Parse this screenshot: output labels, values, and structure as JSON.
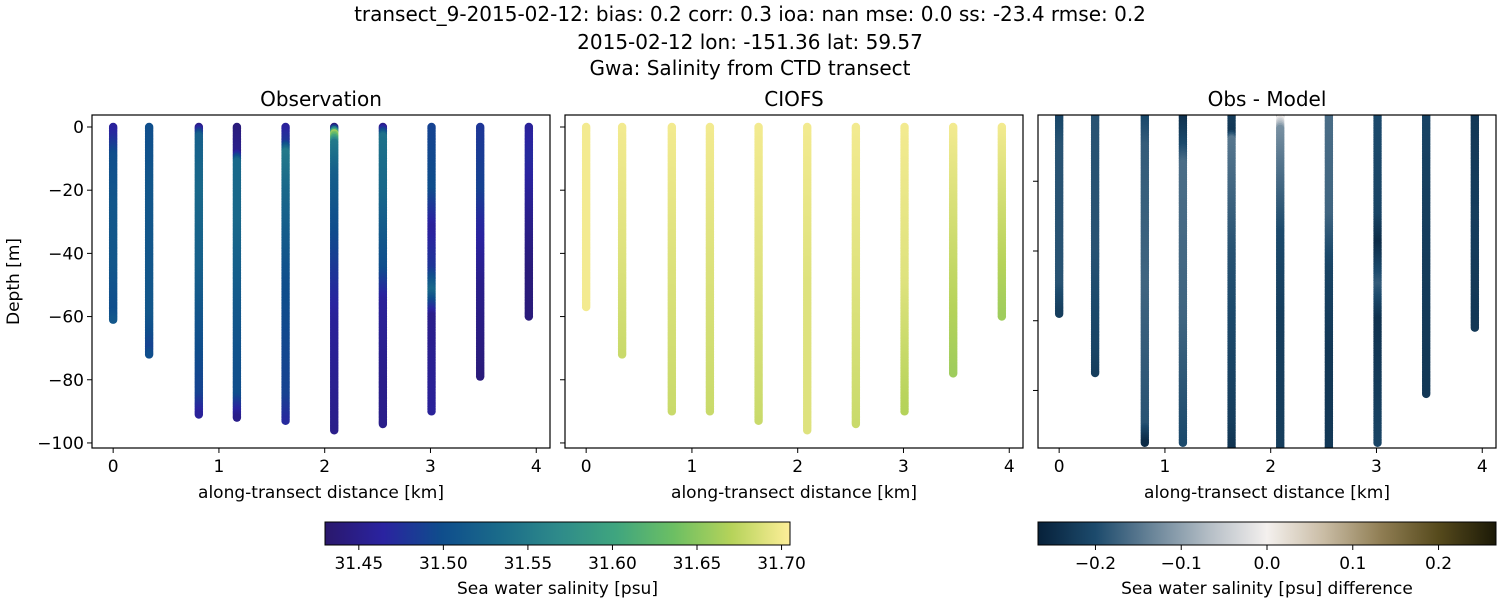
{
  "figure": {
    "suptitle_lines": [
      "transect_9-2015-02-12: bias: 0.2  corr: 0.3  ioa: nan  mse: 0.0  ss: -23.4  rmse: 0.2",
      "2015-02-12 lon: -151.36 lat: 59.57",
      "Gwa: Salinity from CTD transect"
    ]
  },
  "chart_data": [
    {
      "type": "scatter",
      "title": "Observation",
      "xlabel": "along-transect distance [km]",
      "ylabel": "Depth [m]",
      "xlim": [
        -0.2,
        4.13
      ],
      "ylim": [
        -101.6,
        3.8
      ],
      "xticks": [
        0,
        1,
        2,
        3,
        4
      ],
      "yticks": [
        0,
        -20,
        -40,
        -60,
        -80,
        -100
      ],
      "ytick_labels": [
        "0",
        "−20",
        "−40",
        "−60",
        "−80",
        "−100"
      ],
      "colormap": "haline",
      "vmin": 31.43,
      "vmax": 31.705,
      "stations": [
        {
          "x": 0.0,
          "max_depth": 61,
          "profile": [
            [
              0,
              31.46
            ],
            [
              3,
              31.47
            ],
            [
              9,
              31.5
            ],
            [
              25,
              31.51
            ],
            [
              45,
              31.51
            ],
            [
              58,
              31.5
            ],
            [
              61,
              31.51
            ]
          ]
        },
        {
          "x": 0.34,
          "max_depth": 72,
          "profile": [
            [
              0,
              31.5
            ],
            [
              20,
              31.51
            ],
            [
              40,
              31.51
            ],
            [
              60,
              31.51
            ],
            [
              70,
              31.49
            ],
            [
              72,
              31.5
            ]
          ]
        },
        {
          "x": 0.81,
          "max_depth": 91,
          "profile": [
            [
              0,
              31.45
            ],
            [
              3,
              31.52
            ],
            [
              20,
              31.53
            ],
            [
              45,
              31.52
            ],
            [
              70,
              31.5
            ],
            [
              85,
              31.49
            ],
            [
              91,
              31.46
            ]
          ]
        },
        {
          "x": 1.17,
          "max_depth": 92,
          "profile": [
            [
              0,
              31.44
            ],
            [
              8,
              31.45
            ],
            [
              11,
              31.53
            ],
            [
              30,
              31.53
            ],
            [
              60,
              31.51
            ],
            [
              85,
              31.5
            ],
            [
              92,
              31.45
            ]
          ]
        },
        {
          "x": 1.63,
          "max_depth": 93,
          "profile": [
            [
              0,
              31.46
            ],
            [
              5,
              31.48
            ],
            [
              8,
              31.55
            ],
            [
              20,
              31.53
            ],
            [
              50,
              31.5
            ],
            [
              85,
              31.49
            ],
            [
              93,
              31.47
            ]
          ]
        },
        {
          "x": 2.09,
          "max_depth": 96,
          "profile": [
            [
              0,
              31.44
            ],
            [
              2,
              31.66
            ],
            [
              5,
              31.55
            ],
            [
              15,
              31.52
            ],
            [
              40,
              31.49
            ],
            [
              60,
              31.46
            ],
            [
              96,
              31.45
            ]
          ]
        },
        {
          "x": 2.55,
          "max_depth": 94,
          "profile": [
            [
              0,
              31.45
            ],
            [
              3,
              31.54
            ],
            [
              20,
              31.53
            ],
            [
              45,
              31.5
            ],
            [
              55,
              31.46
            ],
            [
              80,
              31.45
            ],
            [
              94,
              31.45
            ]
          ]
        },
        {
          "x": 3.01,
          "max_depth": 90,
          "profile": [
            [
              0,
              31.49
            ],
            [
              20,
              31.5
            ],
            [
              32,
              31.46
            ],
            [
              45,
              31.48
            ],
            [
              52,
              31.53
            ],
            [
              60,
              31.45
            ],
            [
              90,
              31.46
            ]
          ]
        },
        {
          "x": 3.47,
          "max_depth": 79,
          "profile": [
            [
              0,
              31.48
            ],
            [
              20,
              31.49
            ],
            [
              30,
              31.47
            ],
            [
              50,
              31.45
            ],
            [
              79,
              31.44
            ]
          ]
        },
        {
          "x": 3.93,
          "max_depth": 60,
          "profile": [
            [
              0,
              31.46
            ],
            [
              10,
              31.47
            ],
            [
              30,
              31.45
            ],
            [
              45,
              31.44
            ],
            [
              60,
              31.44
            ]
          ]
        }
      ]
    },
    {
      "type": "scatter",
      "title": "CIOFS",
      "xlabel": "along-transect distance [km]",
      "ylabel": "",
      "xlim": [
        -0.2,
        4.13
      ],
      "ylim": [
        -101.6,
        3.8
      ],
      "xticks": [
        0,
        1,
        2,
        3,
        4
      ],
      "yticks": [
        0,
        -20,
        -40,
        -60,
        -80,
        -100
      ],
      "ytick_labels": [],
      "colormap": "haline",
      "vmin": 31.43,
      "vmax": 31.705,
      "stations": [
        {
          "x": 0.0,
          "max_depth": 57,
          "profile": [
            [
              0,
              31.7
            ],
            [
              57,
              31.7
            ]
          ]
        },
        {
          "x": 0.34,
          "max_depth": 72,
          "profile": [
            [
              0,
              31.7
            ],
            [
              40,
              31.69
            ],
            [
              72,
              31.68
            ]
          ]
        },
        {
          "x": 0.81,
          "max_depth": 90,
          "profile": [
            [
              0,
              31.7
            ],
            [
              40,
              31.69
            ],
            [
              90,
              31.68
            ]
          ]
        },
        {
          "x": 1.17,
          "max_depth": 90,
          "profile": [
            [
              0,
              31.7
            ],
            [
              40,
              31.69
            ],
            [
              90,
              31.68
            ]
          ]
        },
        {
          "x": 1.63,
          "max_depth": 93,
          "profile": [
            [
              0,
              31.7
            ],
            [
              50,
              31.69
            ],
            [
              93,
              31.68
            ]
          ]
        },
        {
          "x": 2.09,
          "max_depth": 96,
          "profile": [
            [
              0,
              31.7
            ],
            [
              50,
              31.69
            ],
            [
              96,
              31.69
            ]
          ]
        },
        {
          "x": 2.55,
          "max_depth": 94,
          "profile": [
            [
              0,
              31.7
            ],
            [
              50,
              31.69
            ],
            [
              94,
              31.68
            ]
          ]
        },
        {
          "x": 3.01,
          "max_depth": 90,
          "profile": [
            [
              0,
              31.7
            ],
            [
              50,
              31.69
            ],
            [
              90,
              31.67
            ]
          ]
        },
        {
          "x": 3.47,
          "max_depth": 78,
          "profile": [
            [
              0,
              31.7
            ],
            [
              40,
              31.68
            ],
            [
              78,
              31.66
            ]
          ]
        },
        {
          "x": 3.93,
          "max_depth": 60,
          "profile": [
            [
              0,
              31.7
            ],
            [
              30,
              31.68
            ],
            [
              60,
              31.66
            ]
          ]
        }
      ]
    },
    {
      "type": "scatter",
      "title": "Obs - Model",
      "xlabel": "along-transect distance [km]",
      "ylabel": "",
      "xlim": [
        -0.2,
        4.13
      ],
      "ylim": [
        -96.5,
        -1.0
      ],
      "xticks": [
        0,
        1,
        2,
        3,
        4
      ],
      "yticks": [
        -20,
        -40,
        -60,
        -80
      ],
      "ytick_labels": [],
      "colormap": "diff",
      "vmin": -0.267,
      "vmax": 0.267,
      "stations": [
        {
          "x": 0.0,
          "max_depth": 58,
          "profile": [
            [
              0,
              -0.21
            ],
            [
              10,
              -0.19
            ],
            [
              50,
              -0.19
            ],
            [
              58,
              -0.22
            ]
          ]
        },
        {
          "x": 0.34,
          "max_depth": 75,
          "profile": [
            [
              0,
              -0.19
            ],
            [
              40,
              -0.19
            ],
            [
              70,
              -0.21
            ],
            [
              75,
              -0.22
            ]
          ]
        },
        {
          "x": 0.81,
          "max_depth": 95,
          "profile": [
            [
              0,
              -0.21
            ],
            [
              10,
              -0.18
            ],
            [
              50,
              -0.17
            ],
            [
              90,
              -0.19
            ],
            [
              95,
              -0.25
            ]
          ]
        },
        {
          "x": 1.17,
          "max_depth": 95,
          "profile": [
            [
              0,
              -0.25
            ],
            [
              10,
              -0.2
            ],
            [
              15,
              -0.16
            ],
            [
              60,
              -0.17
            ],
            [
              95,
              -0.2
            ]
          ]
        },
        {
          "x": 1.63,
          "max_depth": 98,
          "profile": [
            [
              0,
              -0.22
            ],
            [
              6,
              -0.23
            ],
            [
              8,
              -0.15
            ],
            [
              40,
              -0.19
            ],
            [
              90,
              -0.22
            ],
            [
              98,
              -0.24
            ]
          ]
        },
        {
          "x": 2.09,
          "max_depth": 100,
          "profile": [
            [
              0,
              -0.2
            ],
            [
              2,
              0.0
            ],
            [
              5,
              -0.12
            ],
            [
              15,
              -0.15
            ],
            [
              35,
              -0.2
            ],
            [
              60,
              -0.22
            ],
            [
              100,
              -0.22
            ]
          ]
        },
        {
          "x": 2.55,
          "max_depth": 99,
          "profile": [
            [
              0,
              -0.16
            ],
            [
              30,
              -0.17
            ],
            [
              45,
              -0.21
            ],
            [
              70,
              -0.23
            ],
            [
              99,
              -0.23
            ]
          ]
        },
        {
          "x": 3.01,
          "max_depth": 95,
          "profile": [
            [
              0,
              -0.2
            ],
            [
              30,
              -0.21
            ],
            [
              38,
              -0.25
            ],
            [
              50,
              -0.18
            ],
            [
              60,
              -0.24
            ],
            [
              95,
              -0.21
            ]
          ]
        },
        {
          "x": 3.47,
          "max_depth": 81,
          "profile": [
            [
              0,
              -0.21
            ],
            [
              30,
              -0.22
            ],
            [
              81,
              -0.23
            ]
          ]
        },
        {
          "x": 3.93,
          "max_depth": 62,
          "profile": [
            [
              0,
              -0.23
            ],
            [
              30,
              -0.22
            ],
            [
              62,
              -0.23
            ]
          ]
        }
      ]
    }
  ],
  "colorbars": [
    {
      "label": "Sea water salinity [psu]",
      "colormap": "haline",
      "vmin": 31.43,
      "vmax": 31.705,
      "ticks": [
        31.45,
        31.5,
        31.55,
        31.6,
        31.65,
        31.7
      ],
      "tick_labels": [
        "31.45",
        "31.50",
        "31.55",
        "31.60",
        "31.65",
        "31.70"
      ]
    },
    {
      "label": "Sea water salinity [psu] difference",
      "colormap": "diff",
      "vmin": -0.267,
      "vmax": 0.267,
      "ticks": [
        -0.2,
        -0.1,
        0.0,
        0.1,
        0.2
      ],
      "tick_labels": [
        "−0.2",
        "−0.1",
        "0.0",
        "0.1",
        "0.2"
      ]
    }
  ],
  "colormaps": {
    "haline": [
      "#2a186c",
      "#2a23a0",
      "#0f4d8c",
      "#1a6b8a",
      "#2e8a8a",
      "#3fa57f",
      "#6cbf63",
      "#b6d35a",
      "#fdee99"
    ],
    "diff": [
      "#07213a",
      "#1c4a6c",
      "#6a8599",
      "#b5bec6",
      "#f4f0ee",
      "#c9bca4",
      "#8f7d53",
      "#564a1c",
      "#1b1907"
    ]
  }
}
